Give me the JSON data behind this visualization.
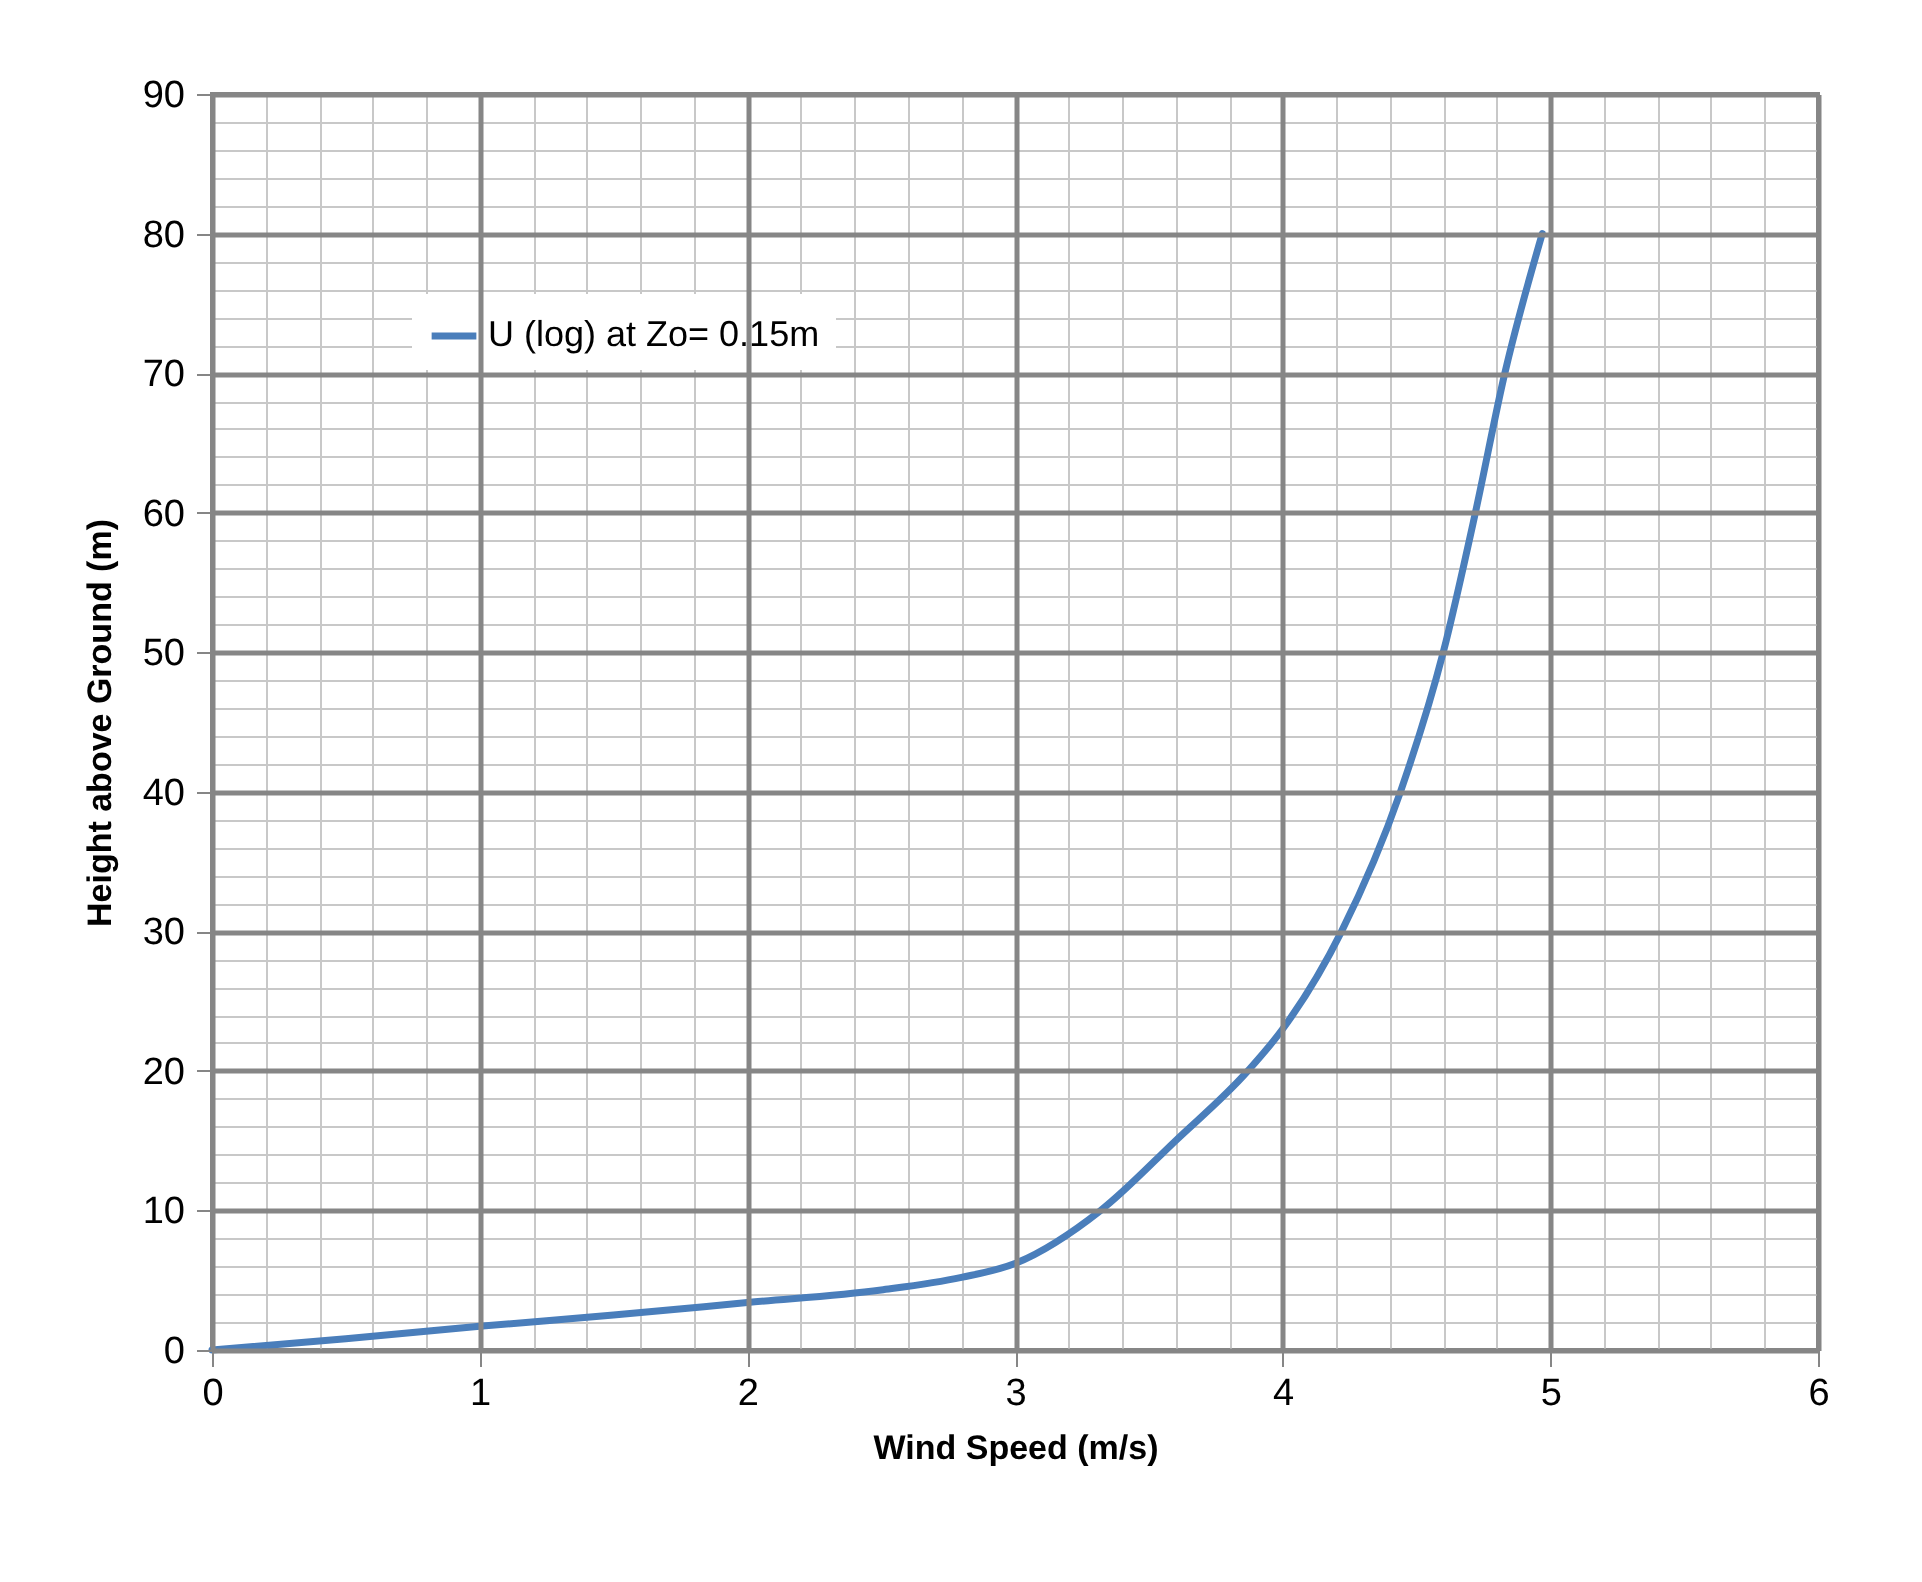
{
  "chart_data": {
    "type": "line",
    "xlabel": "Wind Speed (m/s)",
    "ylabel": "Height above Ground (m)",
    "x": [
      0,
      0.5,
      1,
      1.5,
      2,
      2.5,
      2.8,
      3,
      3.32,
      3.6,
      3.87,
      4,
      4.22,
      4.44,
      4.6,
      4.72,
      4.83,
      4.97
    ],
    "series": [
      {
        "name": "U (log) at Zo= 0.15m",
        "color": "#4a7ebb",
        "values": [
          0,
          0.8,
          1.7,
          2.5,
          3.4,
          4.3,
          5.2,
          6.2,
          10,
          15,
          20,
          23,
          30,
          40,
          50,
          60,
          70,
          80
        ]
      }
    ],
    "xlim": [
      0,
      6
    ],
    "xticks": [
      0,
      1,
      2,
      3,
      4,
      5,
      6
    ],
    "ylim": [
      0,
      90
    ],
    "yticks": [
      0,
      10,
      20,
      30,
      40,
      50,
      60,
      70,
      80,
      90
    ],
    "grid": true,
    "legend": "top left",
    "marker": "none",
    "line_style": "solid"
  }
}
